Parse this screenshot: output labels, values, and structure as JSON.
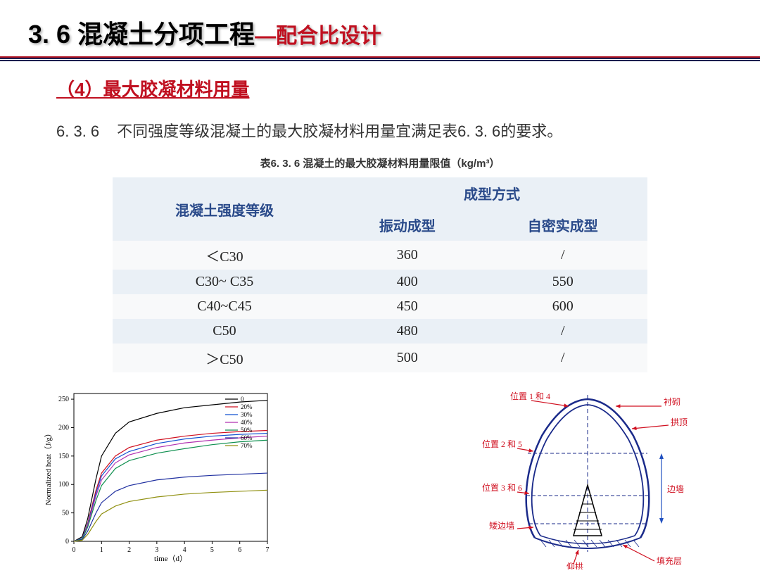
{
  "header": {
    "main_title": "3. 6  混凝土分项工程",
    "main_title_color": "#000000",
    "sub_title": "—配合比设计",
    "sub_title_color": "#c01020"
  },
  "section": {
    "label": "（4）最大胶凝材料用量",
    "color": "#c01020"
  },
  "body": {
    "num": "6. 3. 6",
    "text": "不同强度等级混凝土的最大胶凝材料用量宜满足表6. 3. 6的要求。"
  },
  "table": {
    "title": "表6. 3. 6 混凝土的最大胶凝材料用量限值（kg/m³）",
    "header_row1_col1": "混凝土强度等级",
    "header_row1_col2": "成型方式",
    "header_row2_col1": "振动成型",
    "header_row2_col2": "自密实成型",
    "header_bg": "#eaf0f6",
    "header_text_color": "#2a4a8a",
    "rows": [
      {
        "grade": "＜C30",
        "vibration": "360",
        "self": "/"
      },
      {
        "grade": "C30~ C35",
        "vibration": "400",
        "self": "550"
      },
      {
        "grade": "C40~C45",
        "vibration": "450",
        "self": "600"
      },
      {
        "grade": "C50",
        "vibration": "480",
        "self": "/"
      },
      {
        "grade": "＞C50",
        "vibration": "500",
        "self": "/"
      }
    ]
  },
  "chart": {
    "type": "line",
    "xlabel": "time（d）",
    "ylabel": "Normalized heat（J/g）",
    "xlim": [
      0,
      7
    ],
    "ylim": [
      0,
      260
    ],
    "xtick_step": 1,
    "ytick_step": 50,
    "background_color": "#ffffff",
    "border_color": "#000000",
    "tick_fontsize": 10,
    "label_fontsize": 11,
    "legend_position": "top-right-inside",
    "legend_fontsize": 9,
    "series": [
      {
        "name": "0",
        "color": "#000000",
        "data": [
          [
            0,
            0
          ],
          [
            0.3,
            8
          ],
          [
            0.5,
            40
          ],
          [
            0.8,
            110
          ],
          [
            1,
            150
          ],
          [
            1.5,
            190
          ],
          [
            2,
            210
          ],
          [
            3,
            225
          ],
          [
            4,
            235
          ],
          [
            5,
            240
          ],
          [
            6,
            245
          ],
          [
            7,
            248
          ]
        ]
      },
      {
        "name": "20%",
        "color": "#d01020",
        "data": [
          [
            0,
            0
          ],
          [
            0.3,
            5
          ],
          [
            0.5,
            32
          ],
          [
            0.8,
            90
          ],
          [
            1,
            120
          ],
          [
            1.5,
            150
          ],
          [
            2,
            165
          ],
          [
            3,
            178
          ],
          [
            4,
            185
          ],
          [
            5,
            190
          ],
          [
            6,
            193
          ],
          [
            7,
            195
          ]
        ]
      },
      {
        "name": "30%",
        "color": "#1050d0",
        "data": [
          [
            0,
            0
          ],
          [
            0.3,
            5
          ],
          [
            0.5,
            30
          ],
          [
            0.8,
            85
          ],
          [
            1,
            115
          ],
          [
            1.5,
            145
          ],
          [
            2,
            158
          ],
          [
            3,
            172
          ],
          [
            4,
            180
          ],
          [
            5,
            185
          ],
          [
            6,
            188
          ],
          [
            7,
            190
          ]
        ]
      },
      {
        "name": "40%",
        "color": "#b030b0",
        "data": [
          [
            0,
            0
          ],
          [
            0.3,
            4
          ],
          [
            0.5,
            28
          ],
          [
            0.8,
            80
          ],
          [
            1,
            108
          ],
          [
            1.5,
            138
          ],
          [
            2,
            152
          ],
          [
            3,
            165
          ],
          [
            4,
            173
          ],
          [
            5,
            178
          ],
          [
            6,
            182
          ],
          [
            7,
            185
          ]
        ]
      },
      {
        "name": "50%",
        "color": "#109050",
        "data": [
          [
            0,
            0
          ],
          [
            0.3,
            4
          ],
          [
            0.5,
            25
          ],
          [
            0.8,
            72
          ],
          [
            1,
            98
          ],
          [
            1.5,
            128
          ],
          [
            2,
            142
          ],
          [
            3,
            155
          ],
          [
            4,
            163
          ],
          [
            5,
            170
          ],
          [
            6,
            175
          ],
          [
            7,
            178
          ]
        ]
      },
      {
        "name": "60%",
        "color": "#2030a0",
        "data": [
          [
            0,
            0
          ],
          [
            0.3,
            3
          ],
          [
            0.5,
            18
          ],
          [
            0.8,
            50
          ],
          [
            1,
            68
          ],
          [
            1.5,
            88
          ],
          [
            2,
            98
          ],
          [
            3,
            108
          ],
          [
            4,
            113
          ],
          [
            5,
            116
          ],
          [
            6,
            118
          ],
          [
            7,
            120
          ]
        ]
      },
      {
        "name": "70%",
        "color": "#909010",
        "data": [
          [
            0,
            0
          ],
          [
            0.3,
            2
          ],
          [
            0.5,
            12
          ],
          [
            0.8,
            35
          ],
          [
            1,
            48
          ],
          [
            1.5,
            62
          ],
          [
            2,
            70
          ],
          [
            3,
            78
          ],
          [
            4,
            83
          ],
          [
            5,
            86
          ],
          [
            6,
            88
          ],
          [
            7,
            90
          ]
        ]
      }
    ]
  },
  "diagram": {
    "outline_color": "#1a2a8a",
    "dash_color": "#1a2a8a",
    "label_color_red": "#d01020",
    "label_color_blue": "#2050c0",
    "arrow_color": "#d01020",
    "labels": {
      "pos14": "位置 1 和 4",
      "pos25": "位置 2 和 5",
      "pos36": "位置 3 和 6",
      "lining": "衬砌",
      "crown": "拱顶",
      "sidewall": "边墙",
      "shortwall": "矮边墙",
      "invert": "仰拱",
      "fill": "填充层"
    }
  }
}
